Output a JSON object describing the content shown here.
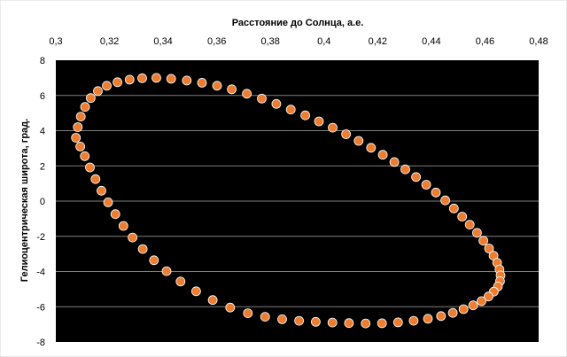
{
  "chart_data": {
    "type": "scatter",
    "title": "",
    "xlabel": "Расстояние до Солнца, а.е.",
    "ylabel": "Гелиоцентрическая широта, град.",
    "x_axis_position": "top",
    "xlim": [
      0.3,
      0.48
    ],
    "ylim": [
      -8,
      8
    ],
    "x_ticks": [
      "0,3",
      "0,32",
      "0,34",
      "0,36",
      "0,38",
      "0,4",
      "0,42",
      "0,44",
      "0,46",
      "0,48"
    ],
    "y_ticks": [
      "8",
      "6",
      "4",
      "2",
      "0",
      "-2",
      "-4",
      "-6",
      "-8"
    ],
    "grid": true,
    "legend": "none",
    "colors": {
      "plot_background": "#000000",
      "gridline": "#7f7f7f",
      "marker_fill": "#ed7d31",
      "marker_edge": "#ffffff"
    },
    "series": [
      {
        "points": [
          [
            0.3075,
            3.6
          ],
          [
            0.3082,
            4.2
          ],
          [
            0.3093,
            4.8
          ],
          [
            0.3109,
            5.35
          ],
          [
            0.313,
            5.85
          ],
          [
            0.3157,
            6.25
          ],
          [
            0.319,
            6.55
          ],
          [
            0.323,
            6.75
          ],
          [
            0.3275,
            6.9
          ],
          [
            0.3322,
            6.98
          ],
          [
            0.3375,
            7.0
          ],
          [
            0.343,
            6.95
          ],
          [
            0.3488,
            6.85
          ],
          [
            0.3545,
            6.72
          ],
          [
            0.3601,
            6.55
          ],
          [
            0.3656,
            6.35
          ],
          [
            0.3712,
            6.1
          ],
          [
            0.3768,
            5.82
          ],
          [
            0.3822,
            5.52
          ],
          [
            0.3876,
            5.2
          ],
          [
            0.393,
            4.87
          ],
          [
            0.3981,
            4.53
          ],
          [
            0.4032,
            4.17
          ],
          [
            0.4082,
            3.8
          ],
          [
            0.4129,
            3.42
          ],
          [
            0.4175,
            3.03
          ],
          [
            0.4219,
            2.63
          ],
          [
            0.4262,
            2.22
          ],
          [
            0.4303,
            1.8
          ],
          [
            0.4343,
            1.37
          ],
          [
            0.4381,
            0.93
          ],
          [
            0.4417,
            0.49
          ],
          [
            0.4452,
            0.04
          ],
          [
            0.4484,
            -0.42
          ],
          [
            0.4515,
            -0.88
          ],
          [
            0.4543,
            -1.34
          ],
          [
            0.457,
            -1.8
          ],
          [
            0.4594,
            -2.25
          ],
          [
            0.4615,
            -2.69
          ],
          [
            0.4632,
            -3.1
          ],
          [
            0.4645,
            -3.5
          ],
          [
            0.4654,
            -3.88
          ],
          [
            0.4658,
            -4.22
          ],
          [
            0.4656,
            -4.55
          ],
          [
            0.4648,
            -4.85
          ],
          [
            0.4633,
            -5.14
          ],
          [
            0.4613,
            -5.42
          ],
          [
            0.4587,
            -5.68
          ],
          [
            0.4556,
            -5.92
          ],
          [
            0.452,
            -6.14
          ],
          [
            0.448,
            -6.35
          ],
          [
            0.4436,
            -6.53
          ],
          [
            0.4387,
            -6.68
          ],
          [
            0.4334,
            -6.8
          ],
          [
            0.4276,
            -6.89
          ],
          [
            0.4216,
            -6.94
          ],
          [
            0.4155,
            -6.95
          ],
          [
            0.4093,
            -6.93
          ],
          [
            0.4031,
            -6.9
          ],
          [
            0.3969,
            -6.86
          ],
          [
            0.3907,
            -6.8
          ],
          [
            0.3844,
            -6.71
          ],
          [
            0.378,
            -6.57
          ],
          [
            0.3716,
            -6.37
          ],
          [
            0.365,
            -6.05
          ],
          [
            0.3585,
            -5.62
          ],
          [
            0.3523,
            -5.12
          ],
          [
            0.3465,
            -4.57
          ],
          [
            0.3413,
            -3.98
          ],
          [
            0.3366,
            -3.36
          ],
          [
            0.3324,
            -2.72
          ],
          [
            0.3286,
            -2.07
          ],
          [
            0.3252,
            -1.41
          ],
          [
            0.3222,
            -0.74
          ],
          [
            0.3195,
            -0.07
          ],
          [
            0.317,
            0.59
          ],
          [
            0.3148,
            1.25
          ],
          [
            0.3127,
            1.91
          ],
          [
            0.3108,
            2.55
          ],
          [
            0.3091,
            3.1
          ]
        ]
      }
    ]
  }
}
